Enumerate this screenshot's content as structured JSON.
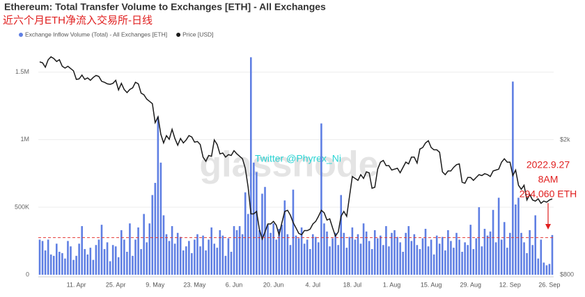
{
  "chart_data": {
    "type": "bar",
    "title": "Ethereum: Total Transfer Volume to Exchanges [ETH] - All Exchanges",
    "subtitle": "近六个月ETH净流入交易所-日线",
    "categories": [
      null,
      null,
      null,
      null,
      null,
      null,
      null,
      null,
      null,
      null,
      null,
      null,
      null,
      "11. Apr",
      null,
      null,
      null,
      null,
      null,
      null,
      null,
      null,
      null,
      null,
      null,
      null,
      null,
      "25. Apr",
      null,
      null,
      null,
      null,
      null,
      null,
      null,
      null,
      null,
      null,
      null,
      null,
      null,
      "9. May",
      null,
      null,
      null,
      null,
      null,
      null,
      null,
      null,
      null,
      null,
      null,
      null,
      null,
      "23. May",
      null,
      null,
      null,
      null,
      null,
      null,
      null,
      null,
      null,
      null,
      null,
      null,
      null,
      "6. Jun",
      null,
      null,
      null,
      null,
      null,
      null,
      null,
      null,
      null,
      null,
      null,
      null,
      null,
      "20. Jun",
      null,
      null,
      null,
      null,
      null,
      null,
      null,
      null,
      null,
      null,
      null,
      null,
      null,
      "4. Jul",
      null,
      null,
      null,
      null,
      null,
      null,
      null,
      null,
      null,
      null,
      null,
      null,
      null,
      "18. Jul",
      null,
      null,
      null,
      null,
      null,
      null,
      null,
      null,
      null,
      null,
      null,
      null,
      null,
      "1. Aug",
      null,
      null,
      null,
      null,
      null,
      null,
      null,
      null,
      null,
      null,
      null,
      null,
      null,
      "15. Aug",
      null,
      null,
      null,
      null,
      null,
      null,
      null,
      null,
      null,
      null,
      null,
      null,
      null,
      "29. Aug",
      null,
      null,
      null,
      null,
      null,
      null,
      null,
      null,
      null,
      null,
      null,
      null,
      null,
      "12. Sep",
      null,
      null,
      null,
      null,
      null,
      null,
      null,
      null,
      null,
      null,
      null,
      null,
      null,
      "26. Sep",
      null
    ],
    "series": [
      {
        "name": "Exchange Inflow Volume (Total) - All Exchanges [ETH]",
        "type": "bar",
        "color": "#5f7fe3",
        "values": [
          260000,
          250000,
          180000,
          260000,
          150000,
          140000,
          230000,
          170000,
          160000,
          120000,
          250000,
          210000,
          110000,
          140000,
          230000,
          360000,
          190000,
          150000,
          200000,
          110000,
          220000,
          260000,
          370000,
          190000,
          240000,
          100000,
          220000,
          210000,
          130000,
          330000,
          260000,
          170000,
          380000,
          140000,
          260000,
          350000,
          190000,
          450000,
          240000,
          380000,
          590000,
          680000,
          1170000,
          830000,
          440000,
          300000,
          250000,
          360000,
          230000,
          310000,
          280000,
          180000,
          210000,
          250000,
          160000,
          260000,
          300000,
          210000,
          290000,
          180000,
          260000,
          350000,
          230000,
          200000,
          330000,
          290000,
          140000,
          270000,
          170000,
          360000,
          330000,
          360000,
          300000,
          610000,
          450000,
          1610000,
          830000,
          760000,
          330000,
          600000,
          650000,
          370000,
          310000,
          380000,
          260000,
          340000,
          370000,
          550000,
          300000,
          220000,
          630000,
          290000,
          270000,
          350000,
          230000,
          260000,
          190000,
          300000,
          280000,
          240000,
          1120000,
          380000,
          320000,
          210000,
          270000,
          310000,
          220000,
          590000,
          310000,
          200000,
          280000,
          350000,
          260000,
          300000,
          230000,
          380000,
          320000,
          250000,
          190000,
          330000,
          270000,
          290000,
          220000,
          360000,
          210000,
          310000,
          330000,
          280000,
          240000,
          170000,
          310000,
          360000,
          250000,
          300000,
          220000,
          190000,
          270000,
          340000,
          210000,
          260000,
          150000,
          290000,
          230000,
          280000,
          180000,
          330000,
          250000,
          200000,
          310000,
          260000,
          170000,
          240000,
          220000,
          370000,
          190000,
          270000,
          500000,
          210000,
          340000,
          290000,
          320000,
          480000,
          240000,
          570000,
          260000,
          390000,
          200000,
          310000,
          1430000,
          520000,
          570000,
          310000,
          240000,
          160000,
          330000,
          220000,
          440000,
          120000,
          260000,
          90000,
          70000,
          80000,
          294060
        ]
      },
      {
        "name": "Price [USD]",
        "type": "line",
        "axis": "y2",
        "color": "#1a1a1a",
        "values": [
          3400,
          3380,
          3280,
          3450,
          3520,
          3480,
          3410,
          3450,
          3300,
          3260,
          3300,
          3250,
          3200,
          3020,
          3030,
          3110,
          3020,
          3050,
          3000,
          3060,
          3100,
          3080,
          2980,
          2960,
          2930,
          2920,
          2940,
          3000,
          2810,
          2940,
          2820,
          2760,
          2820,
          2850,
          2960,
          2930,
          2750,
          2720,
          2640,
          2600,
          2560,
          2250,
          2340,
          2080,
          1960,
          2060,
          2010,
          2150,
          2020,
          1930,
          2020,
          1960,
          2000,
          2060,
          2040,
          1970,
          1980,
          1940,
          1780,
          1730,
          1800,
          1790,
          2000,
          1940,
          1820,
          1830,
          1780,
          1810,
          1800,
          1860,
          1820,
          1790,
          1760,
          1650,
          1450,
          1210,
          1210,
          1230,
          1090,
          1020,
          1070,
          1130,
          1130,
          1150,
          1120,
          1050,
          1140,
          1230,
          1240,
          1200,
          1140,
          1100,
          1060,
          1050,
          1080,
          1080,
          1090,
          1130,
          1150,
          1190,
          1240,
          1220,
          1160,
          1170,
          1100,
          1040,
          1070,
          1190,
          1230,
          1190,
          1360,
          1560,
          1540,
          1520,
          1580,
          1540,
          1610,
          1600,
          1440,
          1450,
          1640,
          1720,
          1740,
          1680,
          1680,
          1630,
          1640,
          1650,
          1600,
          1660,
          1720,
          1700,
          1780,
          1780,
          1710,
          1880,
          1900,
          1960,
          1990,
          1900,
          1870,
          1870,
          1840,
          1610,
          1580,
          1620,
          1620,
          1660,
          1690,
          1700,
          1500,
          1490,
          1550,
          1550,
          1520,
          1550,
          1580,
          1570,
          1590,
          1580,
          1560,
          1620,
          1630,
          1640,
          1720,
          1760,
          1720,
          1720,
          1570,
          1630,
          1470,
          1430,
          1470,
          1330,
          1380,
          1330,
          1320,
          1340,
          1300,
          1320,
          1310,
          1330,
          1340
        ]
      }
    ],
    "ylim": [
      0,
      1725000
    ],
    "yticks": [
      0,
      {
        "value": 500000,
        "label": "500K"
      },
      {
        "value": 1000000,
        "label": "1M"
      },
      {
        "value": 1500000,
        "label": "1.5M"
      }
    ],
    "y2lim": [
      800,
      3900
    ],
    "y2log": true,
    "y2ticks": [
      {
        "value": 800,
        "label": "$800"
      },
      {
        "value": 2000,
        "label": "$2k"
      }
    ],
    "grid": true,
    "reference_line": {
      "value": 275000,
      "color": "#e53935"
    },
    "annotations": [
      "2022.9.27",
      "8AM",
      "294,060 ETH"
    ],
    "watermarks": [
      "glassnode",
      "Twitter @Phyrex_Ni"
    ]
  }
}
